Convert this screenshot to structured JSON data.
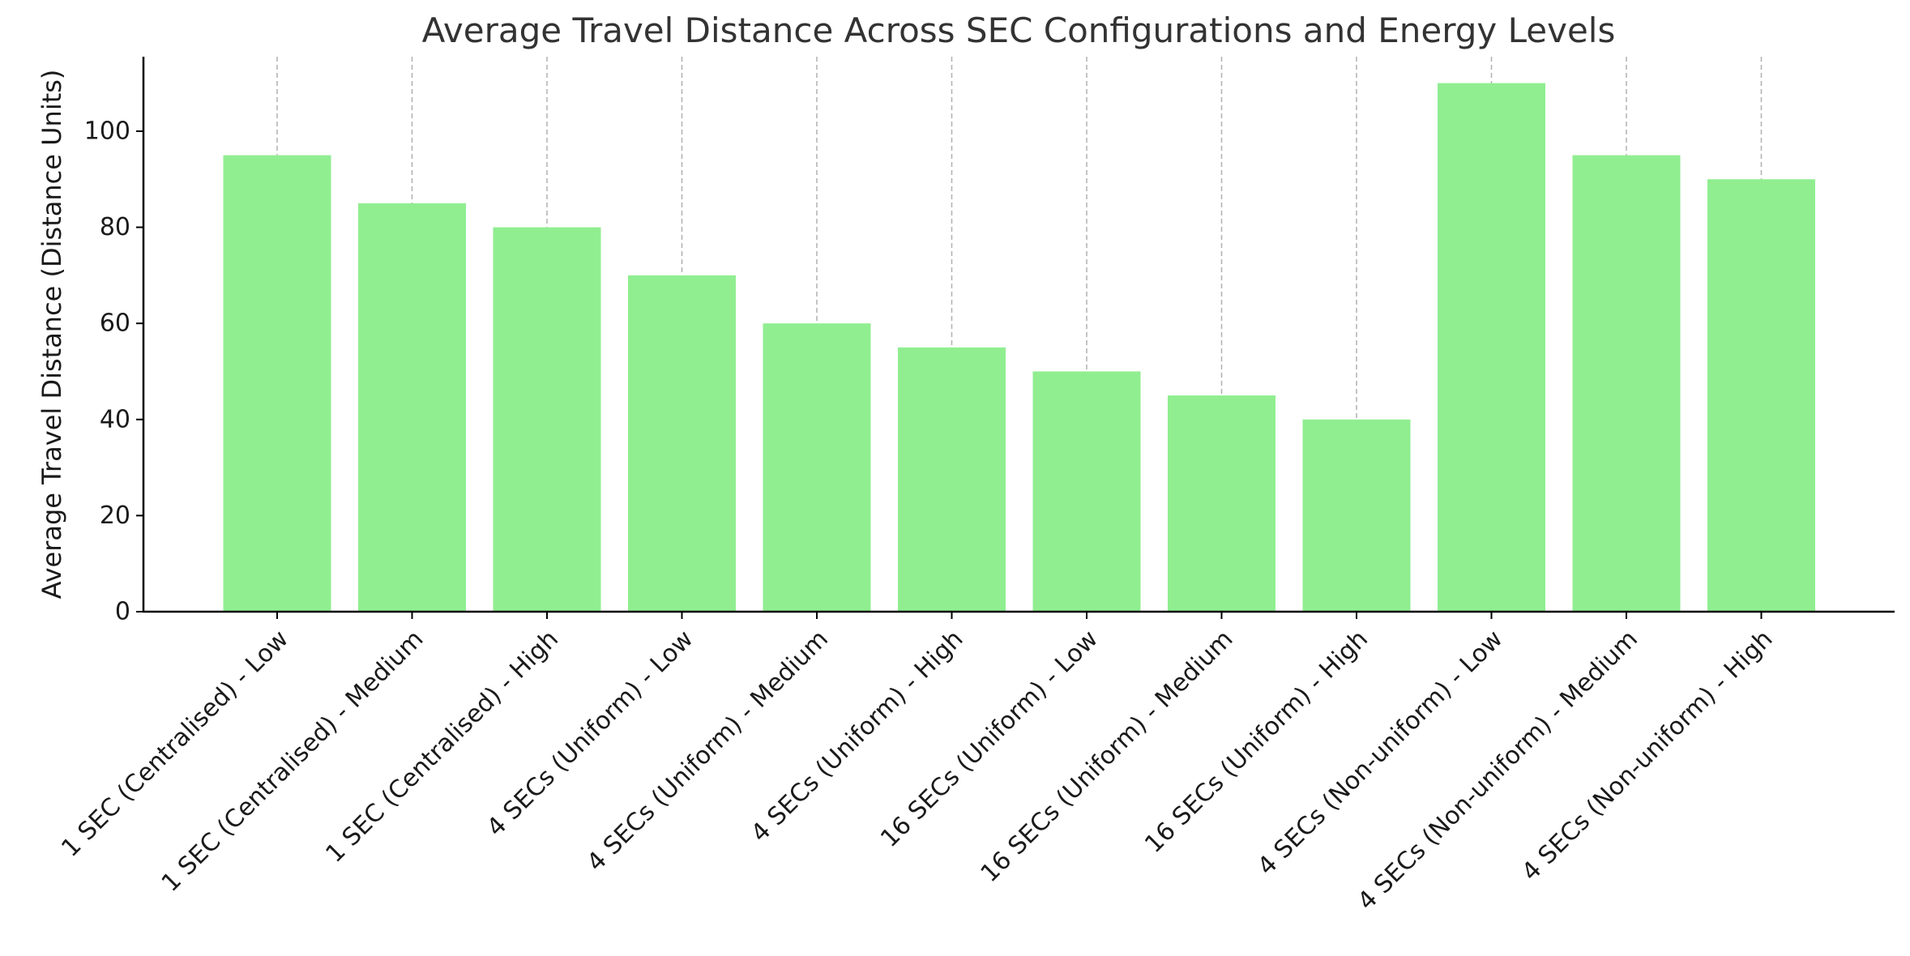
{
  "chart_data": {
    "type": "bar",
    "title": "Average Travel Distance Across SEC Configurations and Energy Levels",
    "xlabel": "",
    "ylabel": "Average Travel Distance (Distance Units)",
    "categories": [
      "1 SEC (Centralised) - Low",
      "1 SEC (Centralised) - Medium",
      "1 SEC (Centralised) - High",
      "4 SECs (Uniform) - Low",
      "4 SECs (Uniform) - Medium",
      "4 SECs (Uniform) - High",
      "16 SECs (Uniform) - Low",
      "16 SECs (Uniform) - Medium",
      "16 SECs (Uniform) - High",
      "4 SECs (Non-uniform) - Low",
      "4 SECs (Non-uniform) - Medium",
      "4 SECs (Non-uniform) - High"
    ],
    "values": [
      95,
      85,
      80,
      70,
      60,
      55,
      50,
      45,
      40,
      110,
      95,
      90
    ],
    "ylim": [
      0,
      115.5
    ],
    "yticks": [
      0,
      20,
      40,
      60,
      80,
      100
    ],
    "grid": "vertical dashed on x",
    "bar_color": "#90EE90"
  }
}
